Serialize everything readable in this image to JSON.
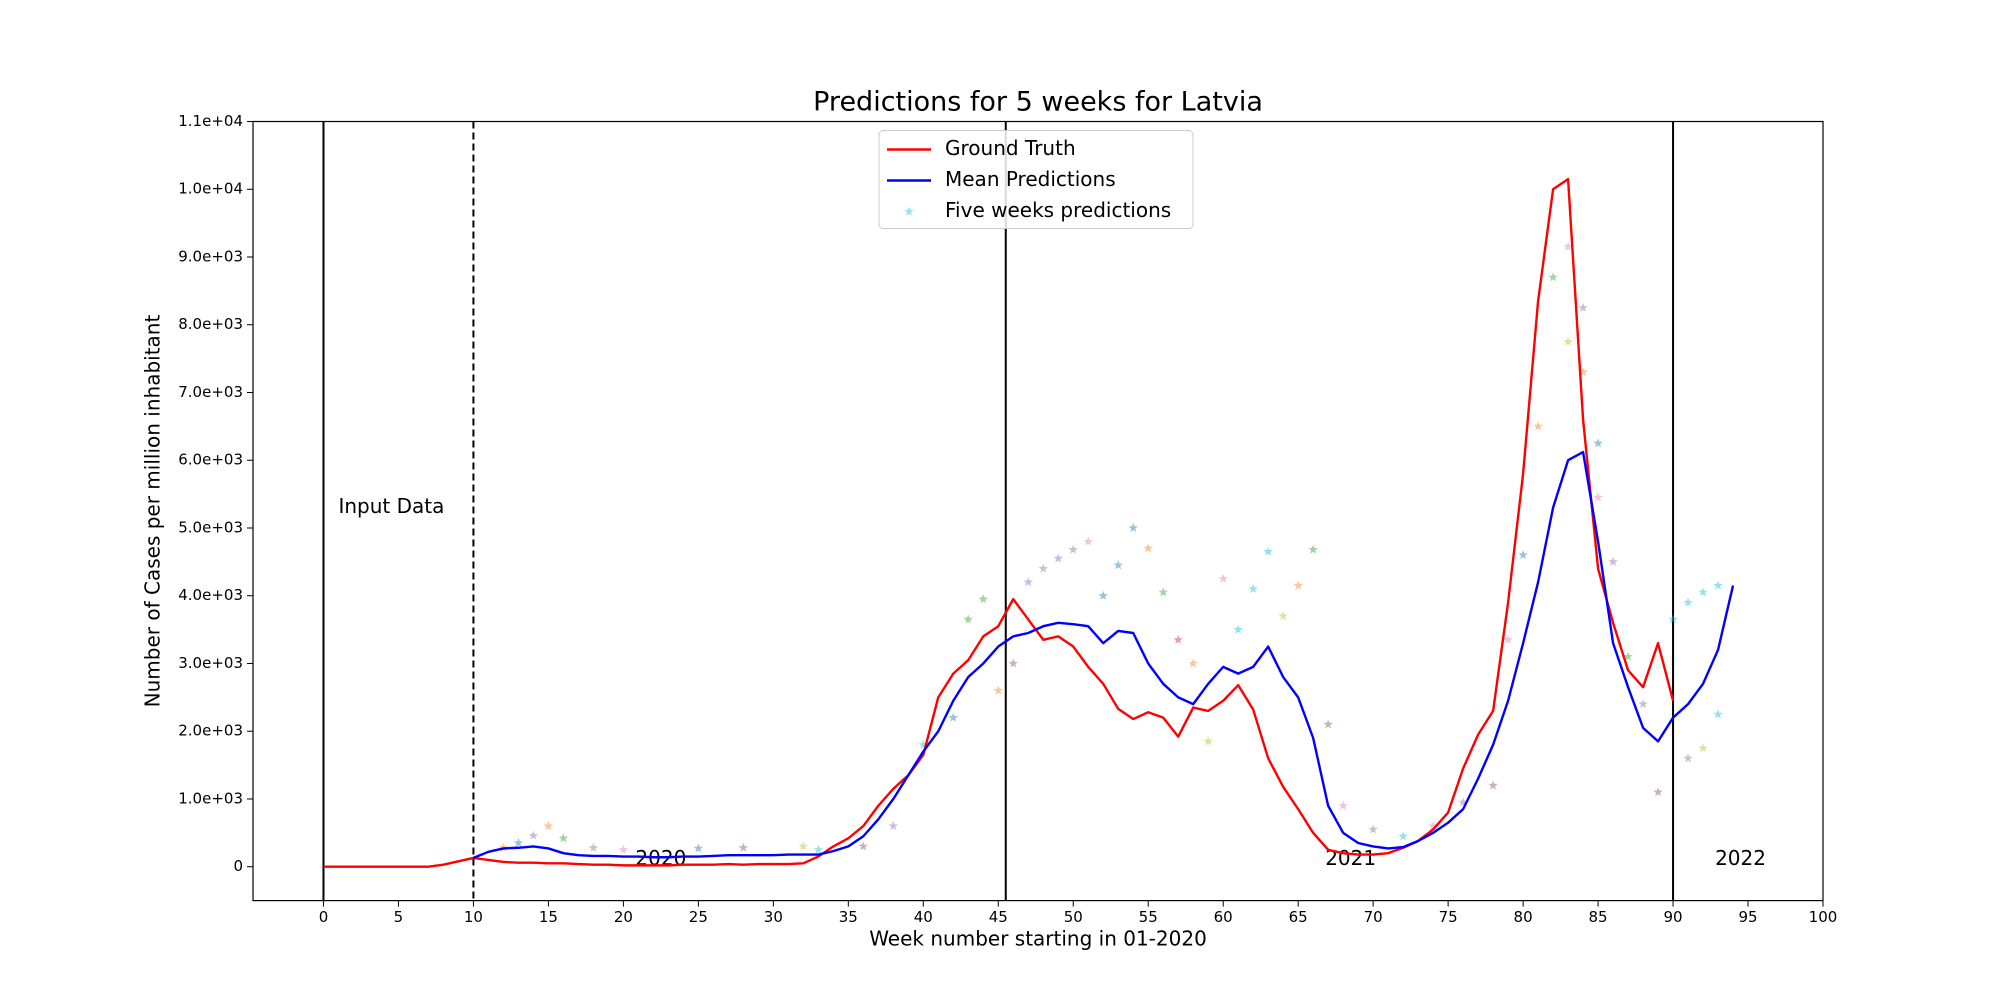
{
  "chart_data": {
    "type": "line",
    "title": "Predictions for 5 weeks for Latvia",
    "xlabel": "Week number starting in 01-2020",
    "ylabel": "Number of Cases per million inhabitant",
    "annotations": [
      "Input Data",
      "2020",
      "2021",
      "2022"
    ],
    "legend": "upper center",
    "xlim": [
      -4.7,
      100
    ],
    "ylim": [
      -500,
      11000
    ],
    "xticks": [
      0,
      5,
      10,
      15,
      20,
      25,
      30,
      35,
      40,
      45,
      50,
      55,
      60,
      65,
      70,
      75,
      80,
      85,
      90,
      95,
      100
    ],
    "yticks": [
      0,
      {
        "value": 1000,
        "label": "1.0e+03"
      },
      {
        "value": 2000,
        "label": "2.0e+03"
      },
      {
        "value": 3000,
        "label": "3.0e+03"
      },
      {
        "value": 4000,
        "label": "4.0e+03"
      },
      {
        "value": 5000,
        "label": "5.0e+03"
      },
      {
        "value": 6000,
        "label": "6.0e+03"
      },
      {
        "value": 7000,
        "label": "7.0e+03"
      },
      {
        "value": 8000,
        "label": "8.0e+03"
      },
      {
        "value": 9000,
        "label": "9.0e+03"
      },
      {
        "value": 10000,
        "label": "1.0e+04"
      },
      {
        "value": 11000,
        "label": "1.1e+04"
      }
    ],
    "series": [
      {
        "name": "Ground Truth",
        "color": "#ff0000",
        "kind": "line",
        "x": [
          0,
          1,
          2,
          3,
          4,
          5,
          6,
          7,
          8,
          9,
          10,
          11,
          12,
          13,
          14,
          15,
          16,
          17,
          18,
          19,
          20,
          21,
          22,
          23,
          24,
          25,
          26,
          27,
          28,
          29,
          30,
          31,
          32,
          33,
          34,
          35,
          36,
          37,
          38,
          39,
          40,
          41,
          42,
          43,
          44,
          45,
          46,
          47,
          48,
          49,
          50,
          51,
          52,
          53,
          54,
          55,
          56,
          57,
          58,
          59,
          60,
          61,
          62,
          63,
          64,
          65,
          66,
          67,
          68,
          69,
          70,
          71,
          72,
          73,
          74,
          75,
          76,
          77,
          78,
          79,
          80,
          81,
          82,
          83,
          84,
          85,
          86,
          87,
          88,
          89,
          90
        ],
        "values": [
          0,
          0,
          0,
          0,
          0,
          0,
          0,
          0,
          30,
          80,
          130,
          100,
          70,
          60,
          60,
          50,
          50,
          40,
          30,
          30,
          20,
          20,
          20,
          20,
          30,
          30,
          30,
          40,
          30,
          40,
          40,
          40,
          50,
          150,
          300,
          420,
          600,
          900,
          1150,
          1350,
          1650,
          2500,
          2850,
          3050,
          3400,
          3550,
          3950,
          3650,
          3350,
          3400,
          3250,
          2950,
          2700,
          2330,
          2180,
          2280,
          2200,
          1920,
          2350,
          2300,
          2450,
          2680,
          2320,
          1600,
          1180,
          850,
          500,
          250,
          200,
          180,
          180,
          200,
          280,
          380,
          550,
          800,
          1450,
          1950,
          2300,
          3900,
          5800,
          8350,
          10000,
          10150,
          6600,
          4400,
          3600,
          2900,
          2650,
          3300,
          2450
        ]
      },
      {
        "name": "Mean Predictions",
        "color": "#0000ff",
        "kind": "line",
        "x": [
          10,
          11,
          12,
          13,
          14,
          15,
          16,
          17,
          18,
          19,
          20,
          21,
          22,
          23,
          24,
          25,
          26,
          27,
          28,
          29,
          30,
          31,
          32,
          33,
          34,
          35,
          36,
          37,
          38,
          39,
          40,
          41,
          42,
          43,
          44,
          45,
          46,
          47,
          48,
          49,
          50,
          51,
          52,
          53,
          54,
          55,
          56,
          57,
          58,
          59,
          60,
          61,
          62,
          63,
          64,
          65,
          66,
          67,
          68,
          69,
          70,
          71,
          72,
          73,
          74,
          75,
          76,
          77,
          78,
          79,
          80,
          81,
          82,
          83,
          84,
          85,
          86,
          87,
          88,
          89,
          90,
          91,
          92,
          93,
          94
        ],
        "values": [
          130,
          220,
          270,
          280,
          300,
          270,
          200,
          170,
          160,
          160,
          150,
          150,
          140,
          140,
          150,
          150,
          160,
          170,
          170,
          170,
          170,
          180,
          180,
          180,
          230,
          300,
          450,
          700,
          1000,
          1350,
          1700,
          2000,
          2450,
          2800,
          3000,
          3250,
          3400,
          3450,
          3550,
          3600,
          3580,
          3550,
          3300,
          3480,
          3450,
          3000,
          2700,
          2500,
          2400,
          2700,
          2950,
          2850,
          2950,
          3250,
          2800,
          2500,
          1900,
          900,
          500,
          350,
          300,
          270,
          290,
          380,
          500,
          650,
          850,
          1300,
          1800,
          2450,
          3300,
          4200,
          5300,
          6000,
          6120,
          4800,
          3300,
          2650,
          2050,
          1850,
          2200,
          2400,
          2700,
          3200,
          4150
        ]
      },
      {
        "name": "Five weeks predictions",
        "color": "#17becf",
        "kind": "scatter",
        "x": [
          15,
          16,
          14,
          13,
          12,
          18,
          20,
          25,
          28,
          32,
          33,
          36,
          38,
          40,
          42,
          43,
          44,
          45,
          46,
          47,
          48,
          49,
          50,
          51,
          52,
          53,
          54,
          55,
          56,
          57,
          58,
          59,
          60,
          61,
          62,
          63,
          64,
          65,
          66,
          67,
          68,
          70,
          72,
          74,
          76,
          78,
          79,
          80,
          81,
          82,
          83,
          83,
          84,
          84,
          85,
          85,
          86,
          87,
          88,
          89,
          90,
          91,
          92,
          93,
          93,
          92,
          91
        ],
        "values": [
          600,
          420,
          460,
          350,
          280,
          280,
          250,
          270,
          280,
          300,
          250,
          300,
          600,
          1800,
          2200,
          3650,
          3950,
          2600,
          3000,
          4200,
          4400,
          4550,
          4680,
          4800,
          4000,
          4450,
          5000,
          4700,
          4050,
          3350,
          3000,
          1850,
          4250,
          3500,
          4100,
          4650,
          3700,
          4150,
          4680,
          2100,
          900,
          550,
          450,
          600,
          950,
          1200,
          3350,
          4600,
          6500,
          8700,
          7750,
          9150,
          8250,
          7300,
          6250,
          5450,
          4500,
          3100,
          2400,
          1100,
          3650,
          3900,
          4050,
          4150,
          2250,
          1750,
          1600
        ],
        "colors": [
          "#ff7f0e",
          "#2ca02c",
          "#9467bd",
          "#1f77b4",
          "#ff7f0e",
          "#7f7f7f",
          "#e377c2",
          "#1f77b4",
          "#8c564b",
          "#bcbd22",
          "#17becf",
          "#8c564b",
          "#9467bd",
          "#17becf",
          "#1f77b4",
          "#2ca02c",
          "#2ca02c",
          "#ff7f0e",
          "#8c564b",
          "#9467bd",
          "#7f7f7f",
          "#9467bd",
          "#7f7f7f",
          "#e377c2",
          "#1f77b4",
          "#1f77b4",
          "#1f77b4",
          "#ff7f0e",
          "#2ca02c",
          "#d62728",
          "#ff7f0e",
          "#bcbd22",
          "#e377c2",
          "#17becf",
          "#17becf",
          "#17becf",
          "#bcbd22",
          "#ff7f0e",
          "#2ca02c",
          "#8c564b",
          "#e377c2",
          "#7f7f7f",
          "#17becf",
          "#e377c2",
          "#9467bd",
          "#8c564b",
          "#e377c2",
          "#1f77b4",
          "#ff7f0e",
          "#2ca02c",
          "#bcbd22",
          "#e377c2",
          "#9467bd",
          "#ff7f0e",
          "#1f77b4",
          "#e377c2",
          "#9467bd",
          "#2ca02c",
          "#7f7f7f",
          "#8c564b",
          "#17becf",
          "#17becf",
          "#17becf",
          "#17becf",
          "#17becf",
          "#bcbd22",
          "#7f7f7f"
        ]
      }
    ]
  }
}
